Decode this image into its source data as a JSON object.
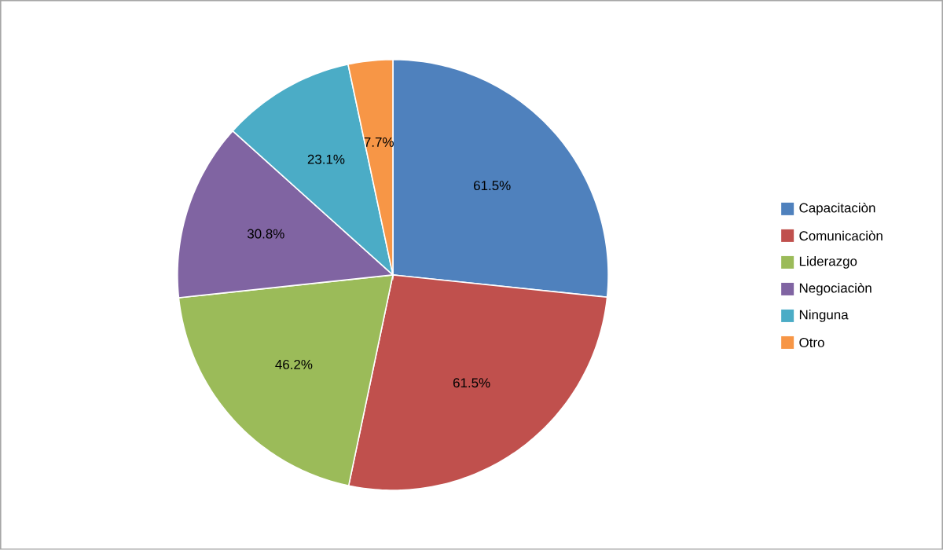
{
  "chart_data": {
    "type": "pie",
    "categories": [
      "Capacitaciòn",
      "Comunicaciòn",
      "Liderazgo",
      "Negociaciòn",
      "Ninguna",
      "Otro"
    ],
    "values": [
      61.5,
      61.5,
      46.2,
      30.8,
      23.1,
      7.7
    ],
    "value_labels": [
      "61.5%",
      "61.5%",
      "46.2%",
      "30.8%",
      "23.1%",
      "7.7%"
    ],
    "colors": [
      "#4f81bd",
      "#c0504d",
      "#9bbb59",
      "#8064a2",
      "#4bacc6",
      "#f79646"
    ],
    "legend": "right"
  }
}
